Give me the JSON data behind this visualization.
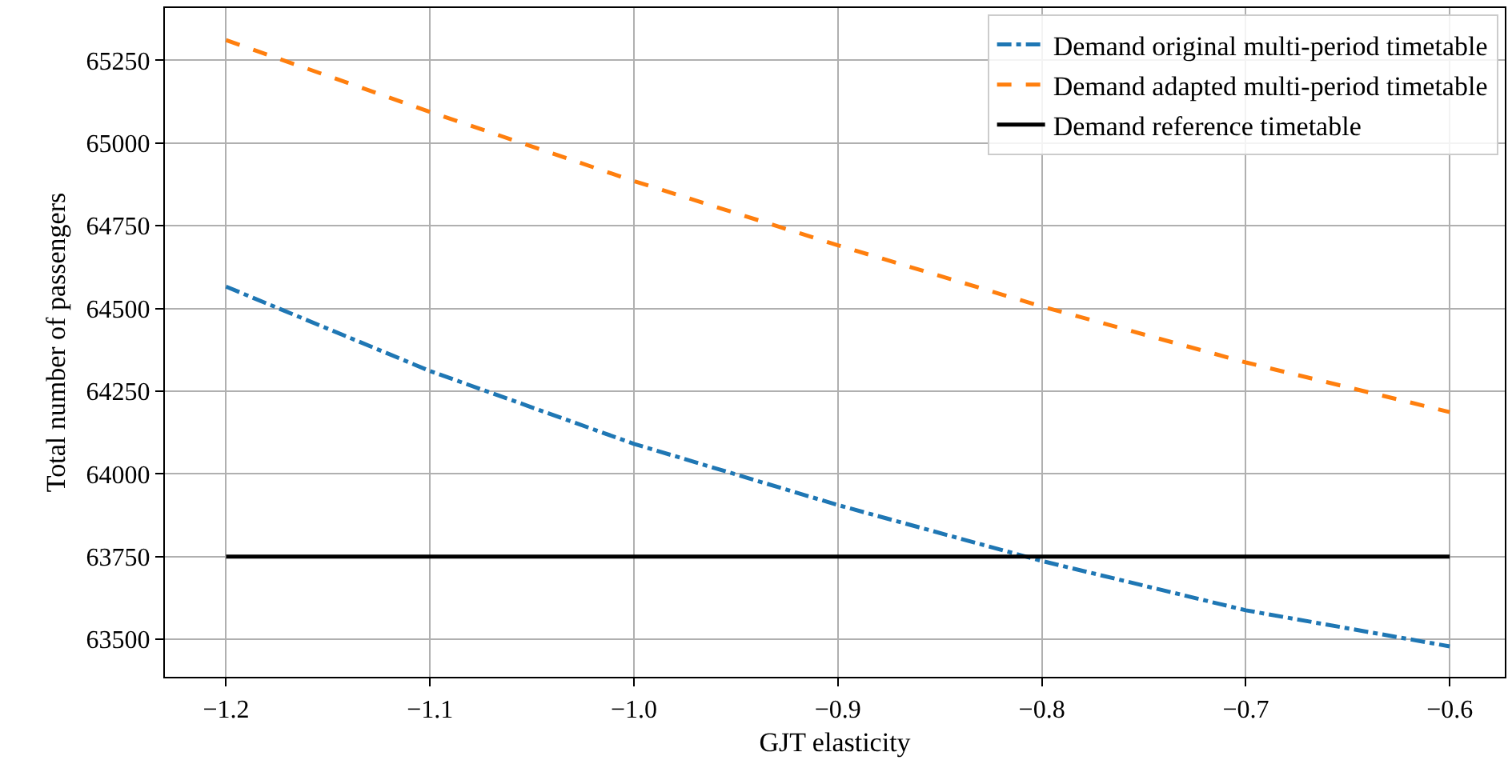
{
  "chart_data": {
    "type": "line",
    "xlabel": "GJT elasticity",
    "ylabel": "Total number of passengers",
    "x": [
      -1.2,
      -1.1,
      -1.0,
      -0.9,
      -0.8,
      -0.7,
      -0.6
    ],
    "series": [
      {
        "name": "Demand original multi-period timetable",
        "color": "#1f77b4",
        "line_style": "dashdot",
        "values": [
          64566,
          64311,
          64091,
          63906,
          63737,
          63588,
          63479
        ]
      },
      {
        "name": "Demand adapted multi-period timetable",
        "color": "#ff7f0e",
        "line_style": "dashed",
        "values": [
          65311,
          65094,
          64885,
          64691,
          64506,
          64337,
          64187
        ]
      },
      {
        "name": "Demand reference timetable",
        "color": "#000000",
        "line_style": "solid",
        "values": [
          63750,
          63750,
          63750,
          63750,
          63750,
          63750,
          63750
        ]
      }
    ],
    "xlim": [
      -1.23,
      -0.573
    ],
    "ylim": [
      63387,
      65408
    ],
    "xticks": [
      {
        "value": -1.2,
        "label": "−1.2"
      },
      {
        "value": -1.1,
        "label": "−1.1"
      },
      {
        "value": -1.0,
        "label": "−1.0"
      },
      {
        "value": -0.9,
        "label": "−0.9"
      },
      {
        "value": -0.8,
        "label": "−0.8"
      },
      {
        "value": -0.7,
        "label": "−0.7"
      },
      {
        "value": -0.6,
        "label": "−0.6"
      }
    ],
    "yticks": [
      63500,
      63750,
      64000,
      64250,
      64500,
      64750,
      65000,
      65250
    ],
    "grid": true,
    "legend": "top right",
    "marker": "none"
  }
}
